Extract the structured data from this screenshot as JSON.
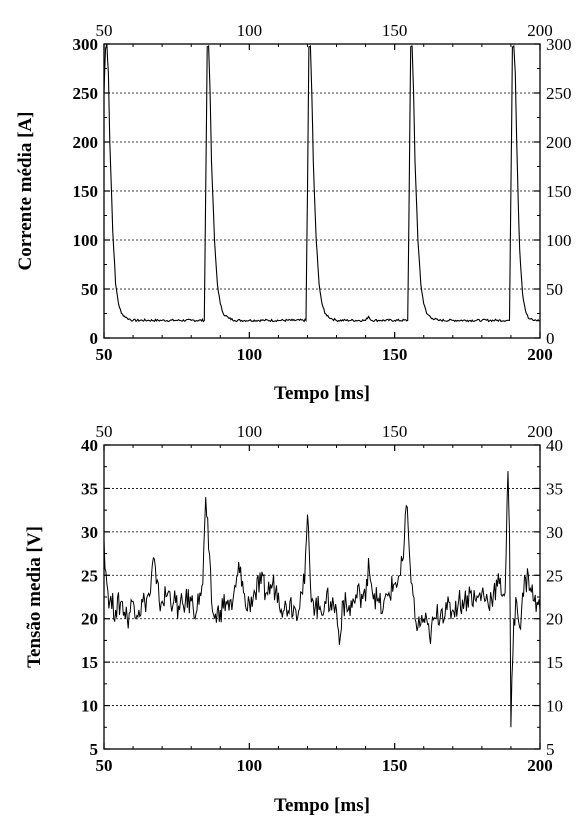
{
  "chart_data": [
    {
      "type": "line",
      "title": "",
      "xlabel": "Tempo [ms]",
      "ylabel": "Corrente média [A]",
      "xlim": [
        50,
        200
      ],
      "ylim": [
        0,
        300
      ],
      "x_ticks": [
        50,
        100,
        150,
        200
      ],
      "y_ticks": [
        0,
        50,
        100,
        150,
        200,
        250,
        300
      ],
      "x_tick_labels": [
        "50",
        "100",
        "150",
        "200"
      ],
      "y_tick_labels": [
        "0",
        "50",
        "100",
        "150",
        "200",
        "250",
        "300"
      ],
      "grid": "horizontal dotted",
      "mirrored_axes": "top and right",
      "line_color": "#000000",
      "series": [
        {
          "x": [
            50,
            50.5,
            51,
            51.5,
            52,
            53,
            54,
            55,
            56,
            58,
            60,
            65,
            70,
            75,
            80,
            84.5,
            85,
            85.5,
            86,
            86.5,
            87,
            88,
            89,
            90,
            91,
            93,
            95,
            100,
            105,
            110,
            115,
            119.5,
            120,
            120.5,
            121,
            121.5,
            122,
            123,
            124,
            125,
            126,
            128,
            130,
            135,
            140,
            141,
            142,
            145,
            150,
            154.5,
            155,
            155.5,
            156,
            156.5,
            157,
            158,
            159,
            160,
            161,
            163,
            165,
            170,
            175,
            180,
            185,
            189.5,
            190,
            190.5,
            191,
            191.5,
            192,
            192.5,
            193,
            194,
            195,
            196,
            198,
            200
          ],
          "y": [
            250,
            295,
            300,
            270,
            200,
            110,
            55,
            35,
            25,
            20,
            18,
            18,
            18,
            18,
            18,
            18,
            150,
            297,
            298,
            250,
            180,
            100,
            55,
            35,
            25,
            20,
            18,
            18,
            18,
            18,
            18,
            18,
            150,
            297,
            298,
            250,
            180,
            100,
            55,
            35,
            25,
            20,
            18,
            18,
            18,
            22,
            18,
            18,
            18,
            18,
            150,
            297,
            298,
            250,
            180,
            100,
            55,
            35,
            25,
            20,
            18,
            18,
            18,
            18,
            18,
            18,
            150,
            297,
            298,
            270,
            200,
            140,
            90,
            45,
            28,
            20,
            18,
            18
          ]
        }
      ]
    },
    {
      "type": "line",
      "title": "",
      "xlabel": "Tempo [ms]",
      "ylabel": "Tensão media [V]",
      "xlim": [
        50,
        200
      ],
      "ylim": [
        5,
        40
      ],
      "x_ticks": [
        50,
        100,
        150,
        200
      ],
      "y_ticks": [
        5,
        10,
        15,
        20,
        25,
        30,
        35,
        40
      ],
      "x_tick_labels": [
        "50",
        "100",
        "150",
        "200"
      ],
      "y_tick_labels": [
        "5",
        "10",
        "15",
        "20",
        "25",
        "30",
        "35",
        "40"
      ],
      "grid": "horizontal dotted",
      "mirrored_axes": "top and right",
      "line_color": "#000000",
      "series": [
        {
          "x": [
            50,
            51,
            52,
            54,
            56,
            58,
            60,
            62,
            64,
            66,
            67,
            68,
            69,
            70,
            72,
            74,
            76,
            78,
            80,
            82,
            83,
            84,
            85,
            86,
            87,
            88,
            90,
            92,
            94,
            96,
            97,
            98,
            99,
            100,
            102,
            104,
            106,
            108,
            110,
            112,
            114,
            116,
            118,
            119,
            120,
            121,
            122,
            124,
            126,
            128,
            130,
            131,
            132,
            134,
            136,
            138,
            140,
            141,
            142,
            144,
            146,
            148,
            150,
            152,
            153,
            154,
            155,
            156,
            157,
            158,
            160,
            162,
            164,
            166,
            168,
            170,
            172,
            174,
            176,
            178,
            180,
            182,
            184,
            186,
            188,
            189,
            189.5,
            190,
            191,
            192,
            193,
            194,
            196,
            198,
            200
          ],
          "y": [
            29,
            24,
            22,
            21,
            22,
            20,
            22,
            21,
            22,
            23,
            27,
            24,
            22,
            22,
            23,
            22,
            21,
            22,
            22,
            21,
            23,
            24,
            34,
            28,
            22,
            20,
            21,
            22,
            21,
            25,
            26,
            23,
            21,
            22,
            23,
            24,
            23,
            24,
            23,
            21,
            22,
            21,
            23,
            24,
            32,
            24,
            22,
            21,
            22,
            22,
            21,
            17,
            22,
            21,
            22,
            23,
            22,
            27,
            24,
            22,
            21,
            23,
            24,
            25,
            27,
            33,
            28,
            24,
            20,
            19,
            20,
            18,
            20,
            21,
            21,
            21,
            22,
            22,
            23,
            22,
            23,
            22,
            23,
            24,
            23,
            37,
            30,
            7.5,
            20,
            22,
            19,
            23,
            25,
            22,
            21
          ]
        }
      ]
    }
  ]
}
